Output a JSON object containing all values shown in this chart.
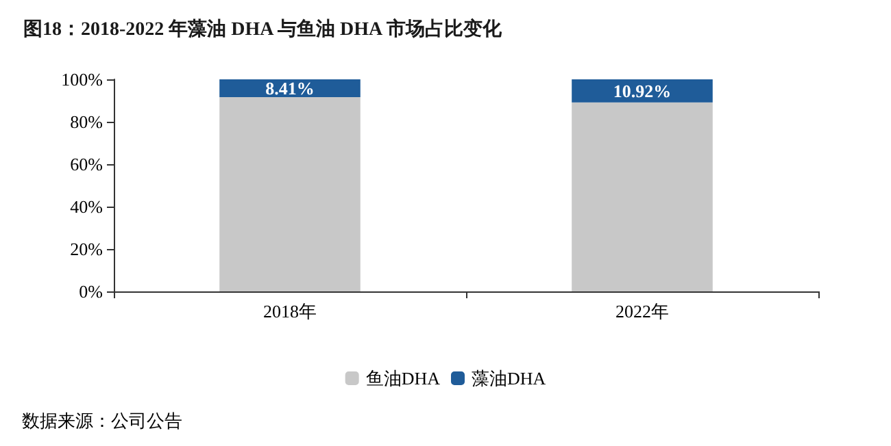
{
  "chart_data": {
    "type": "bar",
    "title": "图18：2018-2022 年藻油 DHA 与鱼油 DHA 市场占比变化",
    "categories": [
      "2018年",
      "2022年"
    ],
    "stacked": true,
    "series": [
      {
        "name": "鱼油DHA",
        "color": "#c8c8c8",
        "values": [
          91.59,
          89.08
        ]
      },
      {
        "name": "藻油DHA",
        "color": "#1f5c99",
        "values": [
          8.41,
          10.92
        ],
        "value_labels": [
          "8.41%",
          "10.92%"
        ]
      }
    ],
    "ylim": [
      0,
      100
    ],
    "yticks": [
      {
        "value": 0,
        "label": "0%"
      },
      {
        "value": 20,
        "label": "20%"
      },
      {
        "value": 40,
        "label": "40%"
      },
      {
        "value": 60,
        "label": "60%"
      },
      {
        "value": 80,
        "label": "80%"
      },
      {
        "value": 100,
        "label": "100%"
      }
    ],
    "grid": false,
    "legend": "bottom",
    "annotations": [
      "数据来源：公司公告"
    ]
  }
}
